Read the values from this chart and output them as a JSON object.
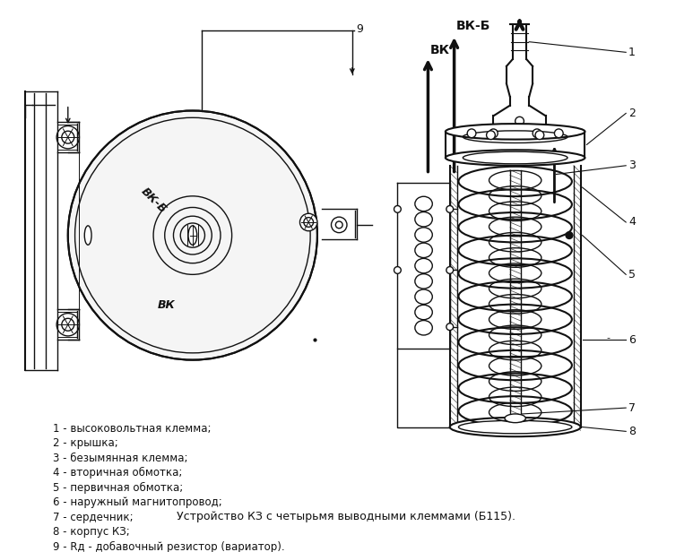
{
  "title": "Устройство КЗ с четырьмя выводными клеммами (Б115).",
  "background_color": "#ffffff",
  "legend_items": [
    "1 - высоковольтная клемма;",
    "2 - крышка;",
    "3 - безымянная клемма;",
    "4 - вторичная обмотка;",
    "5 - первичная обмотка;",
    "6 - наружный магнитопровод;",
    "7 - сердечник;",
    "8 - корпус КЗ;",
    "9 - Rд - добавочный резистор (вариатор)."
  ],
  "label_VKB": "ВК-Б",
  "label_VK": "ВК",
  "line_color": "#111111",
  "font_size_title": 9,
  "font_size_legend": 9,
  "font_size_labels": 9
}
